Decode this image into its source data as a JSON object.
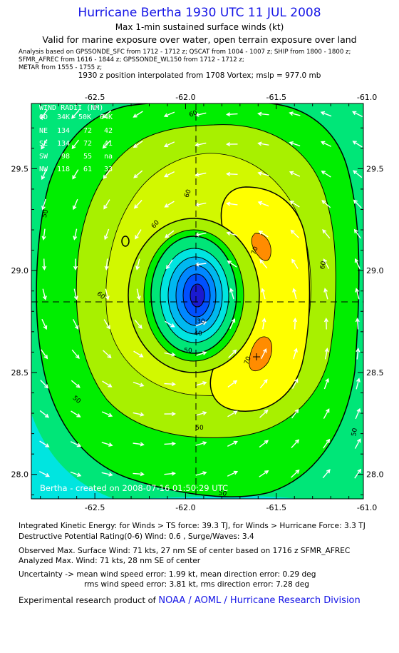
{
  "header": {
    "title": "Hurricane Bertha 1930 UTC 11 JUL 2008",
    "subtitle": "Max 1-min sustained surface winds (kt)",
    "validity": "Valid for marine exposure over water, open terrain exposure over land",
    "analysis_lines": [
      "Analysis based on  GPSSONDE_SFC from 1712 - 1712 z;  QSCAT from 1004 - 1007 z;  SHIP from 1800 - 1800 z;",
      "SFMR_AFREC from 1616 - 1844 z;  GPSSONDE_WL150 from 1712 - 1712 z;",
      "METAR from 1555 - 1755 z;"
    ],
    "position_note": "1930 z position interpolated from 1708 Vortex; mslp = 977.0 mb"
  },
  "map": {
    "x_ticks": [
      "-62.5",
      "-62.0",
      "-61.5",
      "-61.0"
    ],
    "x_values": [
      -62.5,
      -62.0,
      -61.5,
      -61.0
    ],
    "y_ticks": [
      "29.5",
      "29.0",
      "28.5",
      "28.0"
    ],
    "y_values": [
      29.5,
      29.0,
      28.5,
      28.0
    ],
    "lon_range": [
      -62.85,
      -61.02
    ],
    "lat_range": [
      27.88,
      29.82
    ],
    "center": {
      "lon": -61.98,
      "lat": 28.87
    },
    "contour_labels": [
      "50",
      "60",
      "60",
      "60",
      "60",
      "70",
      "70",
      "60",
      "50",
      "50",
      "50",
      "50",
      "50",
      "40",
      "30"
    ],
    "credit": "Bertha - created on 2008-07-16 01:50:29 UTC"
  },
  "wind_radii": {
    "heading": "WIND RADII (NM)",
    "columns": [
      "QD",
      "34K",
      "50K",
      "64K"
    ],
    "rows": [
      {
        "quadrant": "NE",
        "r34": "134",
        "r50": "72",
        "r64": "42"
      },
      {
        "quadrant": "SE",
        "r34": "134",
        "r50": "72",
        "r64": "41"
      },
      {
        "quadrant": "SW",
        "r34": "98",
        "r50": "55",
        "r64": "na"
      },
      {
        "quadrant": "NW",
        "r34": "118",
        "r50": "61",
        "r64": "33"
      }
    ]
  },
  "footer": {
    "ike": "Integrated Kinetic Energy:  for Winds > TS force: 39.3 TJ,  for Winds > Hurricane Force: 3.3 TJ",
    "dpr": "Destructive Potential Rating(0-6)   Wind: 0.6 , Surge/Waves: 3.4",
    "observed_max": "Observed Max. Surface Wind: 71 kts, 27 nm SE of center based on 1716 z SFMR_AFREC",
    "analyzed_max": "Analyzed Max. Wind: 71 kts, 28 nm SE of center",
    "uncertainty_1": "Uncertainty -> mean wind speed error: 1.99 kt,   mean direction error: 0.29 deg",
    "uncertainty_2": "rms wind speed error: 3.81 kt,   rms direction error: 7.28 deg",
    "product_prefix": "Experimental research product of ",
    "product_org": "NOAA / AOML / Hurricane Research Division"
  },
  "colors": {
    "title": "#1414e6",
    "band_30": "#00e5e0",
    "band_40": "#00e678",
    "band_50": "#00ee00",
    "band_60": "#a8f000",
    "band_65": "#d2f800",
    "band_70": "#ffff00",
    "band_max": "#ff8c00"
  }
}
